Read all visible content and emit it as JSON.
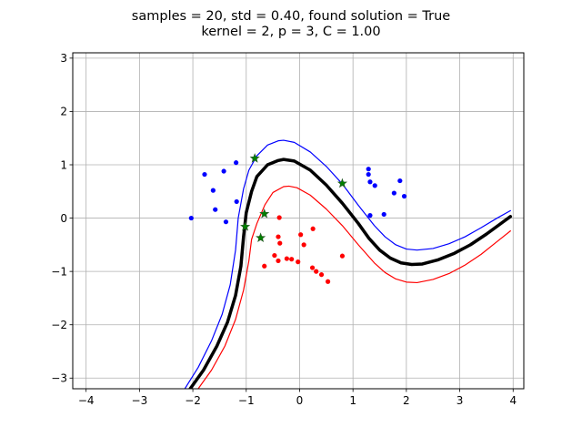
{
  "chart_data": {
    "type": "scatter",
    "title_line1": "samples = 20, std = 0.40, found solution = True",
    "title_line2": "kernel = 2, p = 3, C = 1.00",
    "xlim": [
      -4.25,
      4.2
    ],
    "ylim": [
      -3.2,
      3.1
    ],
    "grid": true,
    "x_ticks": [
      -4,
      -3,
      -2,
      -1,
      0,
      1,
      2,
      3,
      4
    ],
    "y_ticks": [
      -3,
      -2,
      -1,
      0,
      1,
      2,
      3
    ],
    "x_tick_labels": [
      "−4",
      "−3",
      "−2",
      "−1",
      "0",
      "1",
      "2",
      "3",
      "4"
    ],
    "y_tick_labels": [
      "−3",
      "−2",
      "−1",
      "0",
      "1",
      "2",
      "3"
    ],
    "colors": {
      "positive": "#0000ff",
      "negative": "#ff0000",
      "boundary": "#000000",
      "support_vector": "#008000"
    },
    "series": [
      {
        "kind": "points",
        "color": "#0000ff",
        "points": [
          [
            -2.03,
            0.0
          ],
          [
            -1.78,
            0.82
          ],
          [
            -1.62,
            0.52
          ],
          [
            -1.58,
            0.16
          ],
          [
            -1.42,
            0.88
          ],
          [
            -1.38,
            -0.07
          ],
          [
            -1.19,
            1.04
          ],
          [
            -1.18,
            0.31
          ],
          [
            -0.84,
            1.12
          ],
          [
            -1.02,
            -0.16
          ],
          [
            0.8,
            0.65
          ],
          [
            1.29,
            0.92
          ],
          [
            1.29,
            0.82
          ],
          [
            1.32,
            0.68
          ],
          [
            1.41,
            0.61
          ],
          [
            1.32,
            0.05
          ],
          [
            1.58,
            0.07
          ],
          [
            1.77,
            0.47
          ],
          [
            1.88,
            0.7
          ],
          [
            1.96,
            0.41
          ]
        ]
      },
      {
        "kind": "points",
        "color": "#ff0000",
        "points": [
          [
            -0.73,
            -0.37
          ],
          [
            -0.66,
            -0.9
          ],
          [
            -0.38,
            0.01
          ],
          [
            -0.4,
            -0.35
          ],
          [
            -0.37,
            -0.47
          ],
          [
            -0.47,
            -0.7
          ],
          [
            -0.4,
            -0.8
          ],
          [
            -0.24,
            -0.76
          ],
          [
            -0.15,
            -0.77
          ],
          [
            -0.03,
            -0.82
          ],
          [
            0.02,
            -0.31
          ],
          [
            0.08,
            -0.5
          ],
          [
            0.25,
            -0.2
          ],
          [
            0.24,
            -0.93
          ],
          [
            0.31,
            -1.0
          ],
          [
            0.41,
            -1.06
          ],
          [
            0.53,
            -1.19
          ],
          [
            0.8,
            -0.71
          ],
          [
            -0.66,
            0.08
          ],
          [
            -1.02,
            -0.16
          ]
        ]
      },
      {
        "kind": "support_vectors",
        "color": "#008000",
        "points": [
          [
            -0.84,
            1.12
          ],
          [
            -1.02,
            -0.16
          ],
          [
            -0.66,
            0.08
          ],
          [
            -0.73,
            -0.37
          ],
          [
            0.8,
            0.65
          ]
        ]
      },
      {
        "kind": "line",
        "name": "boundary",
        "color": "#000000",
        "width": 3.5,
        "points": [
          [
            -2.05,
            -3.2
          ],
          [
            -1.8,
            -2.85
          ],
          [
            -1.55,
            -2.4
          ],
          [
            -1.35,
            -1.95
          ],
          [
            -1.2,
            -1.45
          ],
          [
            -1.1,
            -0.9
          ],
          [
            -1.05,
            -0.35
          ],
          [
            -1.0,
            0.1
          ],
          [
            -0.9,
            0.5
          ],
          [
            -0.8,
            0.78
          ],
          [
            -0.6,
            1.0
          ],
          [
            -0.4,
            1.08
          ],
          [
            -0.3,
            1.1
          ],
          [
            -0.1,
            1.07
          ],
          [
            0.2,
            0.9
          ],
          [
            0.5,
            0.62
          ],
          [
            0.8,
            0.28
          ],
          [
            1.1,
            -0.1
          ],
          [
            1.3,
            -0.38
          ],
          [
            1.5,
            -0.6
          ],
          [
            1.7,
            -0.75
          ],
          [
            1.9,
            -0.84
          ],
          [
            2.1,
            -0.87
          ],
          [
            2.3,
            -0.86
          ],
          [
            2.6,
            -0.78
          ],
          [
            2.9,
            -0.66
          ],
          [
            3.2,
            -0.5
          ],
          [
            3.5,
            -0.3
          ],
          [
            3.8,
            -0.08
          ],
          [
            3.95,
            0.03
          ]
        ]
      },
      {
        "kind": "line",
        "name": "margin-positive",
        "color": "#0000ff",
        "width": 1.2,
        "points": [
          [
            -2.15,
            -3.2
          ],
          [
            -1.9,
            -2.8
          ],
          [
            -1.65,
            -2.3
          ],
          [
            -1.45,
            -1.8
          ],
          [
            -1.3,
            -1.25
          ],
          [
            -1.2,
            -0.6
          ],
          [
            -1.15,
            0.0
          ],
          [
            -1.05,
            0.55
          ],
          [
            -0.95,
            0.9
          ],
          [
            -0.8,
            1.17
          ],
          [
            -0.6,
            1.37
          ],
          [
            -0.4,
            1.45
          ],
          [
            -0.3,
            1.46
          ],
          [
            -0.1,
            1.42
          ],
          [
            0.2,
            1.24
          ],
          [
            0.5,
            0.97
          ],
          [
            0.8,
            0.64
          ],
          [
            1.1,
            0.24
          ],
          [
            1.4,
            -0.14
          ],
          [
            1.6,
            -0.35
          ],
          [
            1.8,
            -0.5
          ],
          [
            2.0,
            -0.58
          ],
          [
            2.2,
            -0.6
          ],
          [
            2.5,
            -0.57
          ],
          [
            2.8,
            -0.48
          ],
          [
            3.1,
            -0.35
          ],
          [
            3.4,
            -0.18
          ],
          [
            3.7,
            0.0
          ],
          [
            3.95,
            0.14
          ]
        ]
      },
      {
        "kind": "line",
        "name": "margin-negative",
        "color": "#ff0000",
        "width": 1.2,
        "points": [
          [
            -1.9,
            -3.2
          ],
          [
            -1.65,
            -2.85
          ],
          [
            -1.4,
            -2.4
          ],
          [
            -1.2,
            -1.9
          ],
          [
            -1.05,
            -1.35
          ],
          [
            -0.95,
            -0.8
          ],
          [
            -0.9,
            -0.4
          ],
          [
            -0.8,
            -0.1
          ],
          [
            -0.65,
            0.25
          ],
          [
            -0.5,
            0.48
          ],
          [
            -0.3,
            0.59
          ],
          [
            -0.2,
            0.6
          ],
          [
            -0.05,
            0.57
          ],
          [
            0.2,
            0.43
          ],
          [
            0.5,
            0.17
          ],
          [
            0.8,
            -0.14
          ],
          [
            1.1,
            -0.5
          ],
          [
            1.4,
            -0.84
          ],
          [
            1.6,
            -1.02
          ],
          [
            1.8,
            -1.14
          ],
          [
            2.0,
            -1.2
          ],
          [
            2.2,
            -1.21
          ],
          [
            2.5,
            -1.15
          ],
          [
            2.8,
            -1.04
          ],
          [
            3.1,
            -0.88
          ],
          [
            3.4,
            -0.68
          ],
          [
            3.7,
            -0.44
          ],
          [
            3.95,
            -0.24
          ]
        ]
      }
    ]
  }
}
